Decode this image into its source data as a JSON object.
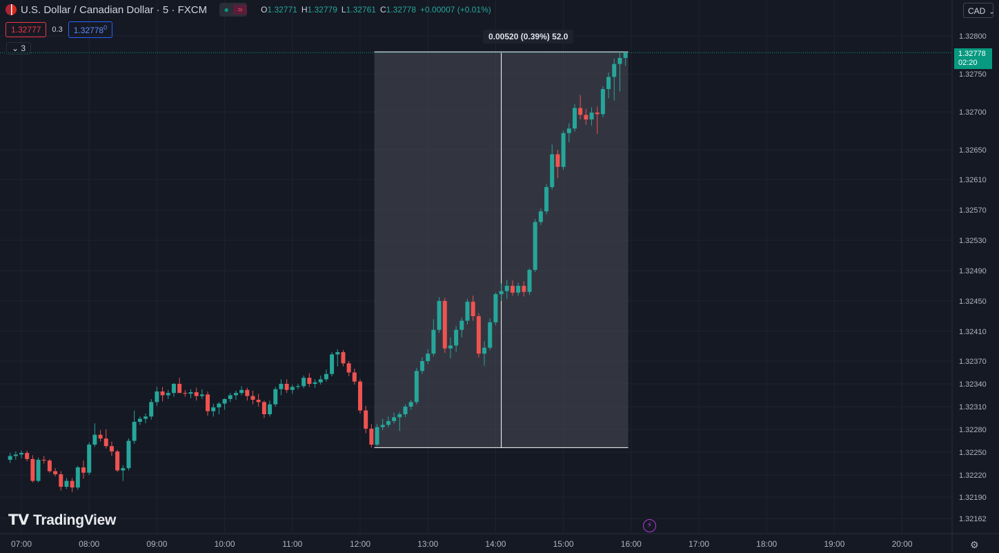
{
  "header": {
    "symbol": "U.S. Dollar / Canadian Dollar · 5 · FXCM",
    "open_label": "O",
    "open": "1.32771",
    "high_label": "H",
    "high": "1.32779",
    "low_label": "L",
    "low": "1.32761",
    "close_label": "C",
    "close": "1.32778",
    "change": "+0.00007 (+0.01%)",
    "sell_price": "1.32777",
    "spread": "0.3",
    "buy_price": "1.32778",
    "buy_price_sup": "0",
    "indicators_count": "3",
    "currency": "CAD"
  },
  "range_tool": {
    "label": "0.00520 (0.39%) 52.0"
  },
  "last_price": {
    "value": "1.32778",
    "countdown": "02:20"
  },
  "branding": {
    "logo_text": "TradingView"
  },
  "chart_data": {
    "type": "candlestick",
    "title": "U.S. Dollar / Canadian Dollar · 5 · FXCM",
    "timeframe": "5",
    "x_ticks": [
      "07:00",
      "08:00",
      "09:00",
      "10:00",
      "11:00",
      "12:00",
      "13:00",
      "14:00",
      "15:00",
      "16:00",
      "17:00",
      "18:00",
      "19:00",
      "20:00"
    ],
    "y_ticks": [
      "1.32800",
      "1.32750",
      "1.32700",
      "1.32650",
      "1.32610",
      "1.32570",
      "1.32530",
      "1.32490",
      "1.32450",
      "1.32410",
      "1.32370",
      "1.32340",
      "1.32310",
      "1.32280",
      "1.32250",
      "1.32220",
      "1.32190",
      "1.32162"
    ],
    "start_time": "06:50",
    "bar_minutes": 5,
    "candles": [
      [
        1.3224,
        1.32249,
        1.32236,
        1.32245
      ],
      [
        1.32245,
        1.32251,
        1.3224,
        1.32247
      ],
      [
        1.32247,
        1.32252,
        1.32242,
        1.32249
      ],
      [
        1.32249,
        1.32252,
        1.32238,
        1.32241
      ],
      [
        1.32241,
        1.32246,
        1.3221,
        1.32212
      ],
      [
        1.32212,
        1.32243,
        1.3221,
        1.3224
      ],
      [
        1.3224,
        1.32245,
        1.32235,
        1.32239
      ],
      [
        1.32239,
        1.32241,
        1.32223,
        1.32225
      ],
      [
        1.32225,
        1.32229,
        1.32218,
        1.32221
      ],
      [
        1.32221,
        1.32225,
        1.32199,
        1.32204
      ],
      [
        1.32204,
        1.32216,
        1.32201,
        1.32212
      ],
      [
        1.32212,
        1.32216,
        1.32197,
        1.32203
      ],
      [
        1.32203,
        1.32232,
        1.322,
        1.3223
      ],
      [
        1.3223,
        1.32239,
        1.32215,
        1.32223
      ],
      [
        1.32223,
        1.32263,
        1.3222,
        1.3226
      ],
      [
        1.3226,
        1.32288,
        1.32257,
        1.32273
      ],
      [
        1.32273,
        1.32279,
        1.32264,
        1.32268
      ],
      [
        1.32268,
        1.3228,
        1.32255,
        1.32258
      ],
      [
        1.32258,
        1.32264,
        1.32245,
        1.32251
      ],
      [
        1.32251,
        1.32253,
        1.32224,
        1.32226
      ],
      [
        1.32226,
        1.32233,
        1.32212,
        1.32229
      ],
      [
        1.32229,
        1.32268,
        1.32226,
        1.32265
      ],
      [
        1.32265,
        1.32305,
        1.32261,
        1.3229
      ],
      [
        1.3229,
        1.32297,
        1.32286,
        1.32294
      ],
      [
        1.32294,
        1.32301,
        1.32288,
        1.32297
      ],
      [
        1.32297,
        1.3232,
        1.32293,
        1.32316
      ],
      [
        1.32316,
        1.32336,
        1.32311,
        1.3233
      ],
      [
        1.3233,
        1.32336,
        1.32317,
        1.32325
      ],
      [
        1.32325,
        1.32332,
        1.3232,
        1.32328
      ],
      [
        1.32328,
        1.32341,
        1.32323,
        1.3234
      ],
      [
        1.3234,
        1.32348,
        1.3233,
        1.32328
      ],
      [
        1.32328,
        1.32332,
        1.32323,
        1.32327
      ],
      [
        1.32327,
        1.32333,
        1.32321,
        1.32329
      ],
      [
        1.32329,
        1.32335,
        1.32318,
        1.32324
      ],
      [
        1.32324,
        1.32333,
        1.3232,
        1.32326
      ],
      [
        1.32326,
        1.3233,
        1.32298,
        1.32304
      ],
      [
        1.32304,
        1.32314,
        1.32297,
        1.32309
      ],
      [
        1.32309,
        1.32316,
        1.323,
        1.32314
      ],
      [
        1.32314,
        1.32321,
        1.32306,
        1.3232
      ],
      [
        1.3232,
        1.32328,
        1.32316,
        1.32325
      ],
      [
        1.32325,
        1.32331,
        1.32319,
        1.32328
      ],
      [
        1.32328,
        1.32337,
        1.32325,
        1.32332
      ],
      [
        1.32332,
        1.32335,
        1.32318,
        1.32324
      ],
      [
        1.32324,
        1.32331,
        1.32313,
        1.32319
      ],
      [
        1.32319,
        1.32327,
        1.3231,
        1.32316
      ],
      [
        1.32316,
        1.32318,
        1.32295,
        1.323
      ],
      [
        1.323,
        1.32318,
        1.32297,
        1.32313
      ],
      [
        1.32313,
        1.32336,
        1.3231,
        1.32333
      ],
      [
        1.32333,
        1.32346,
        1.32325,
        1.3234
      ],
      [
        1.3234,
        1.32346,
        1.32328,
        1.32332
      ],
      [
        1.32332,
        1.32339,
        1.32327,
        1.32336
      ],
      [
        1.32336,
        1.3234,
        1.32333,
        1.32337
      ],
      [
        1.32337,
        1.32351,
        1.32334,
        1.32348
      ],
      [
        1.32348,
        1.32354,
        1.32336,
        1.3234
      ],
      [
        1.3234,
        1.32346,
        1.32335,
        1.32342
      ],
      [
        1.32342,
        1.32351,
        1.32339,
        1.32346
      ],
      [
        1.32346,
        1.32359,
        1.32343,
        1.32353
      ],
      [
        1.32353,
        1.32382,
        1.3235,
        1.32379
      ],
      [
        1.32379,
        1.32386,
        1.32363,
        1.32382
      ],
      [
        1.32382,
        1.32385,
        1.32363,
        1.32367
      ],
      [
        1.32367,
        1.3237,
        1.3235,
        1.32355
      ],
      [
        1.32355,
        1.3236,
        1.32339,
        1.32343
      ],
      [
        1.32343,
        1.32346,
        1.32301,
        1.32305
      ],
      [
        1.32305,
        1.32311,
        1.32275,
        1.32281
      ],
      [
        1.32281,
        1.32287,
        1.32256,
        1.3226
      ],
      [
        1.3226,
        1.32287,
        1.32258,
        1.32283
      ],
      [
        1.32283,
        1.32294,
        1.32279,
        1.32286
      ],
      [
        1.32286,
        1.32297,
        1.32283,
        1.32291
      ],
      [
        1.32291,
        1.32302,
        1.32288,
        1.32296
      ],
      [
        1.32296,
        1.32303,
        1.32278,
        1.323
      ],
      [
        1.323,
        1.32313,
        1.32296,
        1.3231
      ],
      [
        1.3231,
        1.32319,
        1.32306,
        1.32316
      ],
      [
        1.32316,
        1.32361,
        1.32313,
        1.32357
      ],
      [
        1.32357,
        1.32375,
        1.32353,
        1.3237
      ],
      [
        1.3237,
        1.32386,
        1.32366,
        1.3238
      ],
      [
        1.3238,
        1.32426,
        1.32376,
        1.32412
      ],
      [
        1.32412,
        1.32455,
        1.32408,
        1.3245
      ],
      [
        1.3245,
        1.32454,
        1.32381,
        1.32387
      ],
      [
        1.32387,
        1.32402,
        1.32374,
        1.32391
      ],
      [
        1.32391,
        1.32417,
        1.32382,
        1.32412
      ],
      [
        1.32412,
        1.32428,
        1.32402,
        1.32424
      ],
      [
        1.32424,
        1.32453,
        1.32419,
        1.32449
      ],
      [
        1.32449,
        1.32457,
        1.32424,
        1.3243
      ],
      [
        1.3243,
        1.32434,
        1.32375,
        1.3238
      ],
      [
        1.3238,
        1.32397,
        1.32364,
        1.32388
      ],
      [
        1.32388,
        1.32427,
        1.32385,
        1.32422
      ],
      [
        1.32422,
        1.32461,
        1.32418,
        1.32459
      ],
      [
        1.32459,
        1.32473,
        1.3245,
        1.32463
      ],
      [
        1.32463,
        1.32478,
        1.32453,
        1.3247
      ],
      [
        1.3247,
        1.32477,
        1.32457,
        1.32461
      ],
      [
        1.32461,
        1.32474,
        1.32457,
        1.3247
      ],
      [
        1.3247,
        1.32476,
        1.32456,
        1.32462
      ],
      [
        1.32462,
        1.32493,
        1.32458,
        1.32491
      ],
      [
        1.32491,
        1.32558,
        1.32488,
        1.32554
      ],
      [
        1.32554,
        1.32572,
        1.3255,
        1.32568
      ],
      [
        1.32568,
        1.32604,
        1.32564,
        1.326
      ],
      [
        1.326,
        1.32657,
        1.32597,
        1.32644
      ],
      [
        1.32644,
        1.3265,
        1.32612,
        1.32627
      ],
      [
        1.32627,
        1.32675,
        1.32623,
        1.32672
      ],
      [
        1.32672,
        1.32685,
        1.3266,
        1.32678
      ],
      [
        1.32678,
        1.3271,
        1.32674,
        1.32705
      ],
      [
        1.32705,
        1.32722,
        1.3269,
        1.32696
      ],
      [
        1.32696,
        1.32704,
        1.32683,
        1.3269
      ],
      [
        1.3269,
        1.32706,
        1.32682,
        1.32699
      ],
      [
        1.32699,
        1.32707,
        1.32671,
        1.32697
      ],
      [
        1.32697,
        1.32734,
        1.32693,
        1.3273
      ],
      [
        1.3273,
        1.32752,
        1.32718,
        1.32746
      ],
      [
        1.32746,
        1.3277,
        1.32715,
        1.32763
      ],
      [
        1.32763,
        1.32779,
        1.32727,
        1.32771
      ],
      [
        1.32771,
        1.32779,
        1.32761,
        1.32778
      ]
    ],
    "colors": {
      "up": "#26a69a",
      "down": "#ef5350"
    }
  }
}
